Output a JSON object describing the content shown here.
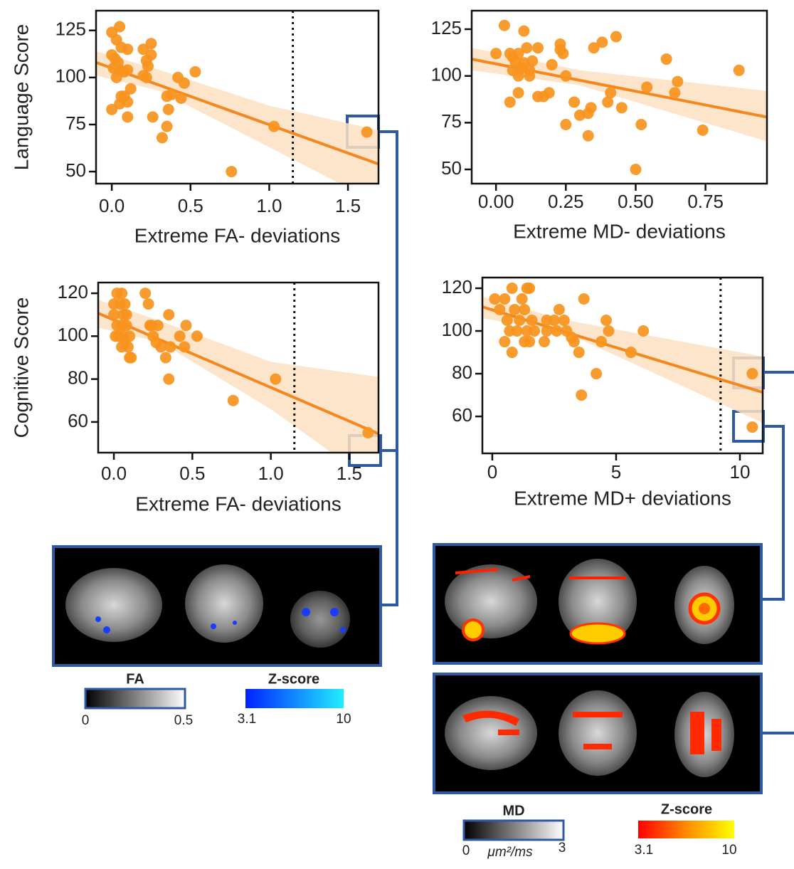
{
  "chart_data": [
    {
      "type": "scatter",
      "xlabel": "Extreme FA- deviations",
      "ylabel": "Language Score",
      "color": "#f7941d",
      "x": [
        0.0,
        0.05,
        0.03,
        0.06,
        0.1,
        0.0,
        0.02,
        0.04,
        0.01,
        0.05,
        0.08,
        0.03,
        0.1,
        0.0,
        0.05,
        0.06,
        0.08,
        0.1,
        0.12,
        0.1,
        0.2,
        0.22,
        0.25,
        0.25,
        0.23,
        0.2,
        0.22,
        0.26,
        0.32,
        0.35,
        0.36,
        0.38,
        0.35,
        0.42,
        0.44,
        0.46,
        0.53,
        0.76,
        1.03,
        1.62
      ],
      "values": [
        124,
        127,
        120,
        116,
        115,
        112,
        110,
        108,
        105,
        104,
        103,
        100,
        104,
        83,
        86,
        90,
        90,
        87,
        94,
        79,
        115,
        109,
        118,
        112,
        106,
        101,
        100,
        79,
        68,
        74,
        83,
        91,
        90,
        100,
        89,
        97,
        103,
        50,
        74,
        71
      ],
      "trend": {
        "x": [
          -0.1,
          1.694
        ],
        "values": [
          108,
          54
        ]
      },
      "band": {
        "x": [
          -0.1,
          0.3,
          1.0,
          1.694
        ],
        "lower": [
          101,
          93,
          63,
          33
        ],
        "upper": [
          114,
          104,
          85,
          72
        ]
      },
      "threshold_x": 1.15,
      "xlim": [
        -0.1,
        1.694
      ],
      "ylim": [
        43.6,
        135.5
      ],
      "xticks": [
        {
          "value": 0,
          "label": "0.0"
        },
        0.5,
        {
          "value": 1,
          "label": "1.0"
        },
        1.5
      ],
      "yticks": [
        50,
        75,
        100,
        125
      ]
    },
    {
      "type": "scatter",
      "xlabel": "Extreme MD- deviations",
      "color": "#f7941d",
      "x": [
        0.03,
        0.0,
        0.05,
        0.06,
        0.07,
        0.08,
        0.09,
        0.06,
        0.08,
        0.1,
        0.11,
        0.1,
        0.12,
        0.13,
        0.12,
        0.15,
        0.15,
        0.17,
        0.19,
        0.2,
        0.05,
        0.08,
        0.23,
        0.24,
        0.23,
        0.25,
        0.25,
        0.28,
        0.3,
        0.33,
        0.33,
        0.34,
        0.35,
        0.38,
        0.4,
        0.41,
        0.43,
        0.45,
        0.5,
        0.52,
        0.54,
        0.61,
        0.64,
        0.65,
        0.74,
        0.87
      ],
      "values": [
        127,
        112,
        112,
        110,
        107,
        112,
        104,
        103,
        100,
        124,
        115,
        107,
        103,
        108,
        100,
        115,
        89,
        89,
        91,
        106,
        86,
        91,
        114,
        112,
        117,
        100,
        74,
        86,
        79,
        68,
        80,
        83,
        115,
        118,
        86,
        91,
        121,
        83,
        50,
        74,
        94,
        109,
        91,
        97,
        71,
        103
      ],
      "trend": {
        "x": [
          -0.087,
          0.97
        ],
        "values": [
          109,
          78
        ]
      },
      "band": {
        "x": [
          -0.087,
          0.3,
          0.97
        ],
        "lower": [
          103,
          95,
          65
        ],
        "upper": [
          115,
          103,
          92
        ]
      },
      "xlim": [
        -0.087,
        0.97
      ],
      "ylim": [
        42.4,
        134.9
      ],
      "xticks": [
        {
          "value": 0,
          "label": "0.00"
        },
        0.25,
        {
          "value": 0.5,
          "label": "0.50"
        },
        0.75
      ],
      "yticks": [
        50,
        75,
        100,
        125
      ]
    },
    {
      "type": "scatter",
      "xlabel": "Extreme FA- deviations",
      "ylabel": "Cognitive Score",
      "color": "#f7941d",
      "x": [
        0.0,
        0.02,
        0.04,
        0.05,
        0.0,
        0.02,
        0.03,
        0.01,
        0.05,
        0.06,
        0.07,
        0.08,
        0.05,
        0.06,
        0.07,
        0.08,
        0.09,
        0.1,
        0.11,
        0.1,
        0.2,
        0.22,
        0.23,
        0.24,
        0.25,
        0.27,
        0.28,
        0.3,
        0.33,
        0.35,
        0.36,
        0.35,
        0.42,
        0.45,
        0.46,
        0.53,
        0.76,
        1.03,
        1.62
      ],
      "values": [
        115,
        120,
        115,
        120,
        110,
        105,
        100,
        100,
        105,
        110,
        115,
        110,
        95,
        100,
        97,
        105,
        95,
        90,
        90,
        100,
        120,
        115,
        105,
        105,
        100,
        97,
        105,
        95,
        90,
        110,
        95,
        80,
        100,
        95,
        105,
        100,
        70,
        80,
        55
      ],
      "trend": {
        "x": [
          -0.1,
          1.686
        ],
        "values": [
          110.7,
          54.5
        ]
      },
      "band": {
        "x": [
          -0.1,
          0.3,
          1.0,
          1.686
        ],
        "lower": [
          104,
          97,
          66,
          30
        ],
        "upper": [
          117,
          107,
          88,
          81
        ]
      },
      "threshold_x": 1.15,
      "xlim": [
        -0.1,
        1.686
      ],
      "ylim": [
        45.7,
        125
      ],
      "xticks": [
        {
          "value": 0,
          "label": "0.0"
        },
        0.5,
        {
          "value": 1,
          "label": "1.0"
        },
        1.5
      ],
      "yticks": [
        60,
        80,
        100,
        120
      ]
    },
    {
      "type": "scatter",
      "xlabel": "Extreme MD+ deviations",
      "color": "#f7941d",
      "x": [
        0.1,
        0.3,
        0.5,
        0.6,
        0.7,
        0.8,
        0.9,
        0.5,
        0.8,
        1.0,
        1.1,
        1.2,
        1.3,
        1.4,
        1.5,
        1.4,
        1.3,
        1.5,
        1.7,
        1.6,
        2.1,
        2.2,
        2.2,
        2.5,
        2.6,
        2.7,
        2.9,
        3.0,
        3.2,
        3.3,
        3.5,
        3.7,
        3.6,
        4.2,
        4.4,
        4.6,
        4.7,
        5.6,
        6.1,
        10.5,
        10.5
      ],
      "values": [
        115,
        110,
        115,
        105,
        100,
        120,
        110,
        95,
        90,
        100,
        105,
        115,
        110,
        120,
        120,
        100,
        95,
        95,
        100,
        105,
        95,
        100,
        105,
        105,
        100,
        110,
        105,
        100,
        97,
        95,
        90,
        115,
        70,
        80,
        95,
        105,
        100,
        90,
        100,
        80,
        55
      ],
      "trend": {
        "x": [
          -0.4,
          10.92
        ],
        "values": [
          111.3,
          71.3
        ]
      },
      "band": {
        "x": [
          -0.4,
          3.0,
          10.92
        ],
        "lower": [
          106,
          99,
          57
        ],
        "upper": [
          116,
          105,
          88
        ]
      },
      "threshold_x": 9.22,
      "xlim": [
        -0.4,
        10.92
      ],
      "ylim": [
        42.7,
        125
      ],
      "xticks": [
        0,
        5,
        10
      ],
      "yticks": [
        60,
        80,
        100,
        120
      ]
    }
  ],
  "colorbars": [
    {
      "title": "FA",
      "min_label": "0",
      "max_label": "0.5"
    },
    {
      "title": "Z-score",
      "min_label": "3.1",
      "max_label": "10"
    },
    {
      "title": "MD",
      "min_label": "0",
      "unit": "μm²/ms",
      "max_label": "3"
    },
    {
      "title": "Z-score",
      "min_label": "3.1",
      "max_label": "10"
    }
  ]
}
